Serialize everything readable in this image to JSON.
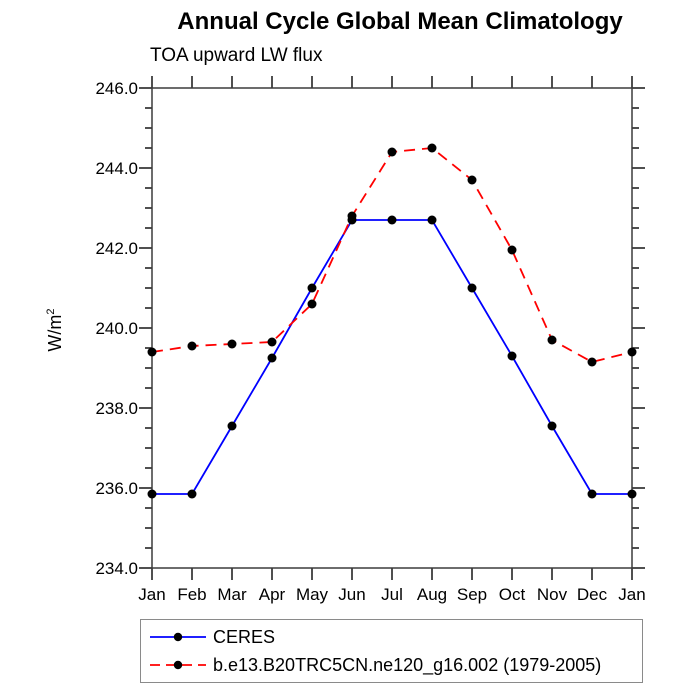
{
  "header": {
    "title": "Annual Cycle Global Mean Climatology",
    "subtitle": "TOA upward LW flux"
  },
  "y_axis": {
    "label_base": "W/m",
    "label_exponent": "2"
  },
  "legend": {
    "entries": [
      {
        "label": "CERES"
      },
      {
        "label": "b.e13.B20TRC5CN.ne120_g16.002 (1979-2005)"
      }
    ]
  },
  "chart_data": {
    "type": "line",
    "title": "Annual Cycle Global Mean Climatology",
    "subtitle": "TOA upward LW flux",
    "ylabel": "W/m^2",
    "categories": [
      "Jan",
      "Feb",
      "Mar",
      "Apr",
      "May",
      "Jun",
      "Jul",
      "Aug",
      "Sep",
      "Oct",
      "Nov",
      "Dec",
      "Jan"
    ],
    "ylim": [
      234.0,
      246.0
    ],
    "ytick_major_step": 2.0,
    "ytick_minor_step": 0.5,
    "ytick_labels": [
      "234.0",
      "236.0",
      "238.0",
      "240.0",
      "242.0",
      "244.0",
      "246.0"
    ],
    "grid": false,
    "legend_position": "bottom",
    "marker": {
      "shape": "circle",
      "color": "#000000",
      "radius": 4.5
    },
    "axis_color": "#3c3c3c",
    "series": [
      {
        "name": "CERES",
        "color": "#0000ff",
        "line_style": "solid",
        "values": [
          235.85,
          235.85,
          237.55,
          239.25,
          241.0,
          242.7,
          242.7,
          242.7,
          241.0,
          239.3,
          237.55,
          235.85,
          235.85
        ]
      },
      {
        "name": "b.e13.B20TRC5CN.ne120_g16.002 (1979-2005)",
        "color": "#ff0000",
        "line_style": "dashed",
        "values": [
          239.4,
          239.55,
          239.6,
          239.65,
          240.6,
          242.8,
          244.4,
          244.5,
          243.7,
          241.95,
          239.7,
          239.15,
          239.4
        ]
      }
    ]
  }
}
